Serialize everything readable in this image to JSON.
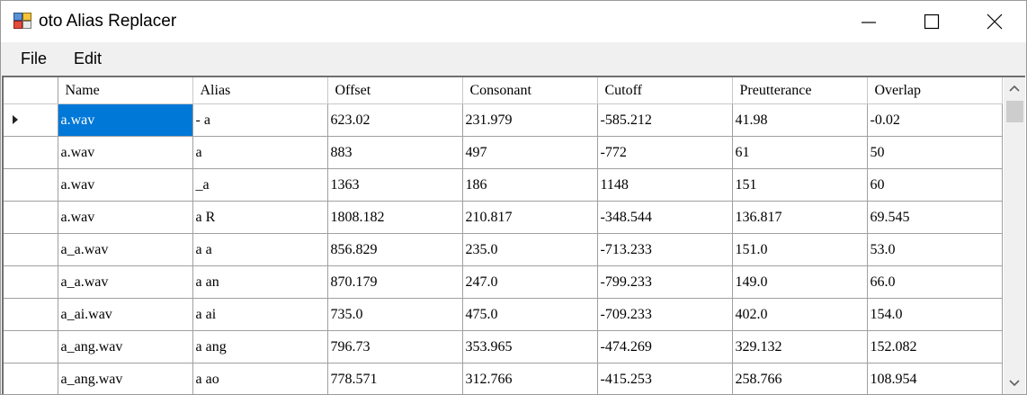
{
  "window": {
    "title": "oto Alias Replacer",
    "icons": {
      "app": "app-icon",
      "minimize": "minimize-icon",
      "maximize": "maximize-icon",
      "close": "close-icon"
    }
  },
  "menu": {
    "file": "File",
    "edit": "Edit"
  },
  "grid": {
    "columns": [
      "Name",
      "Alias",
      "Offset",
      "Consonant",
      "Cutoff",
      "Preutterance",
      "Overlap"
    ],
    "current_row_marker": "row-pointer-icon",
    "selected_cell": {
      "row": 1,
      "column": "Name"
    },
    "selection_color": "#0078d7",
    "rows": [
      [
        "a.wav",
        "- a",
        "623.02",
        "231.979",
        "-585.212",
        "41.98",
        "-0.02"
      ],
      [
        "a.wav",
        "a",
        "883",
        "497",
        "-772",
        "61",
        "50"
      ],
      [
        "a.wav",
        "_a",
        "1363",
        "186",
        "1148",
        "151",
        "60"
      ],
      [
        "a.wav",
        "a R",
        "1808.182",
        "210.817",
        "-348.544",
        "136.817",
        "69.545"
      ],
      [
        "a_a.wav",
        "a a",
        "856.829",
        "235.0",
        "-713.233",
        "151.0",
        "53.0"
      ],
      [
        "a_a.wav",
        "a an",
        "870.179",
        "247.0",
        "-799.233",
        "149.0",
        "66.0"
      ],
      [
        "a_ai.wav",
        "a ai",
        "735.0",
        "475.0",
        "-709.233",
        "402.0",
        "154.0"
      ],
      [
        "a_ang.wav",
        "a ang",
        "796.73",
        "353.965",
        "-474.269",
        "329.132",
        "152.082"
      ],
      [
        "a_ang.wav",
        "a ao",
        "778.571",
        "312.766",
        "-415.253",
        "258.766",
        "108.954"
      ]
    ]
  },
  "scrollbar": {
    "up": "scroll-up-arrow-icon",
    "down": "scroll-down-arrow-icon"
  }
}
